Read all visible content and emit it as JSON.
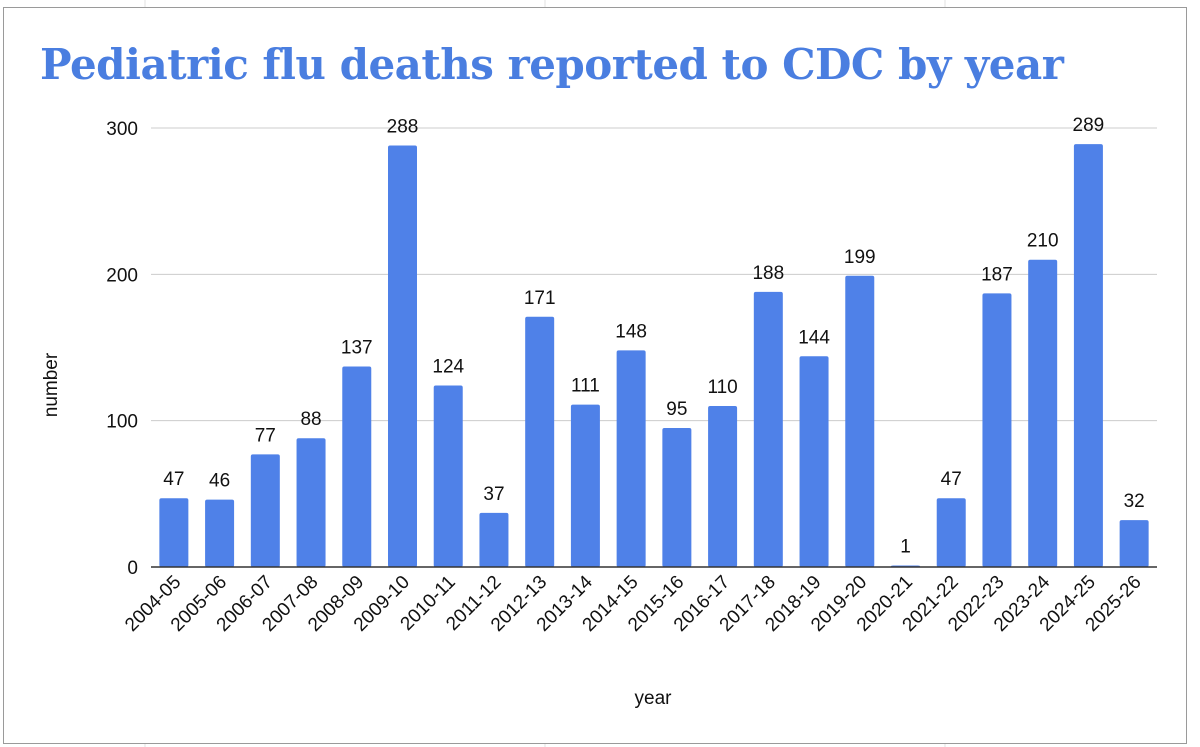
{
  "chart_data": {
    "type": "bar",
    "title": "Pediatric flu deaths reported to CDC by year",
    "xlabel": "year",
    "ylabel": "number",
    "ylim": [
      0,
      300
    ],
    "yticks": [
      0,
      100,
      200,
      300
    ],
    "grid": true,
    "legend": "none",
    "bar_color": "#4f81e8",
    "title_color": "#4a7ee0",
    "categories": [
      "2004-05",
      "2005-06",
      "2006-07",
      "2007-08",
      "2008-09",
      "2009-10",
      "2010-11",
      "2011-12",
      "2012-13",
      "2013-14",
      "2014-15",
      "2015-16",
      "2016-17",
      "2017-18",
      "2018-19",
      "2019-20",
      "2020-21",
      "2021-22",
      "2022-23",
      "2023-24",
      "2024-25",
      "2025-26"
    ],
    "values": [
      47,
      46,
      77,
      88,
      137,
      288,
      124,
      37,
      171,
      111,
      148,
      95,
      110,
      188,
      144,
      199,
      1,
      47,
      187,
      210,
      289,
      32
    ]
  }
}
